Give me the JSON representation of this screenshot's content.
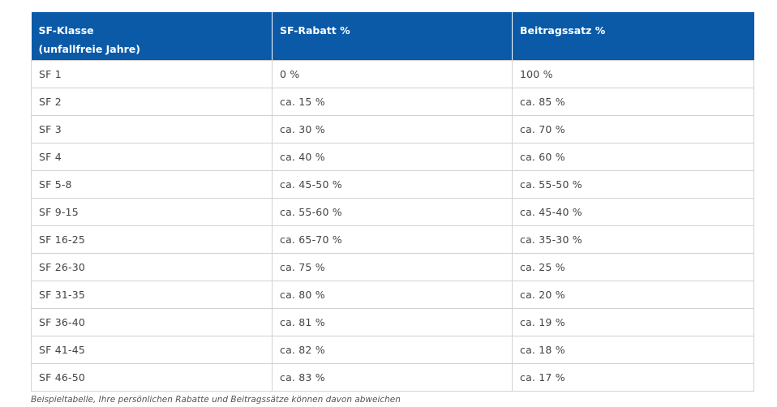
{
  "table": {
    "headers": [
      {
        "line1": "SF-Klasse",
        "line2": "(unfallfreie Jahre)"
      },
      {
        "line1": "SF-Rabatt %",
        "line2": ""
      },
      {
        "line1": "Beitragssatz %",
        "line2": ""
      }
    ],
    "rows": [
      [
        "SF 1",
        "0 %",
        "100 %"
      ],
      [
        "SF 2",
        "ca. 15 %",
        "ca. 85 %"
      ],
      [
        "SF 3",
        "ca. 30 %",
        "ca. 70 %"
      ],
      [
        "SF 4",
        "ca. 40 %",
        "ca. 60 %"
      ],
      [
        "SF 5-8",
        "ca. 45-50 %",
        "ca. 55-50 %"
      ],
      [
        "SF 9-15",
        "ca. 55-60 %",
        "ca. 45-40 %"
      ],
      [
        "SF 16-25",
        "ca. 65-70 %",
        "ca. 35-30 %"
      ],
      [
        "SF 26-30",
        "ca. 75 %",
        "ca. 25 %"
      ],
      [
        "SF 31-35",
        "ca. 80 %",
        "ca. 20 %"
      ],
      [
        "SF 36-40",
        "ca. 81 %",
        "ca. 19 %"
      ],
      [
        "SF 41-45",
        "ca. 82 %",
        "ca. 18 %"
      ],
      [
        "SF 46-50",
        "ca. 83 %",
        "ca. 17 %"
      ]
    ]
  },
  "caption": "Beispieltabelle, Ihre persönlichen Rabatte und Beitragssätze können davon abweichen",
  "colors": {
    "header_bg": "#0a5aa8",
    "header_text": "#ffffff",
    "border": "#d2d2d2",
    "cell_text": "#444444"
  }
}
